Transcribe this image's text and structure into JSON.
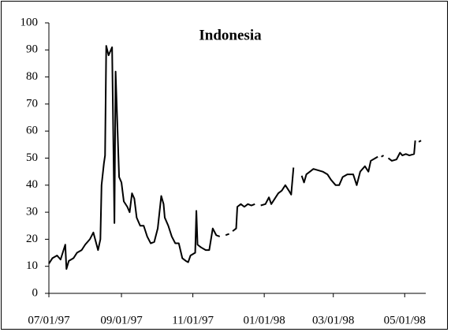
{
  "chart_data": {
    "type": "line",
    "title": "Indonesia",
    "x": [
      "07/01/97",
      "07/04/97",
      "07/08/97",
      "07/11/97",
      "07/15/97",
      "07/16/97",
      "07/18/97",
      "07/22/97",
      "07/25/97",
      "07/29/97",
      "08/01/97",
      "08/05/97",
      "08/08/97",
      "08/12/97",
      "08/14/97",
      "08/15/97",
      "08/17/97",
      "08/18/97",
      "08/19/97",
      "08/21/97",
      "08/24/97",
      "08/26/97",
      "08/27/97",
      "08/30/97",
      "09/01/97",
      "09/03/97",
      "09/06/97",
      "09/08/97",
      "09/10/97",
      "09/12/97",
      "09/14/97",
      "09/17/97",
      "09/20/97",
      "09/23/97",
      "09/26/97",
      "09/29/97",
      "10/02/97",
      "10/05/97",
      "10/07/97",
      "10/08/97",
      "10/11/97",
      "10/14/97",
      "10/17/97",
      "10/20/97",
      "10/23/97",
      "10/26/97",
      "10/28/97",
      "10/30/97",
      "11/03/97",
      "11/04/97",
      "11/05/97",
      "11/08/97",
      "11/12/97",
      "11/15/97",
      "11/18/97",
      "11/21/97",
      "11/24/97",
      "11/26/97",
      "11/29/97",
      "12/02/97",
      "12/03/97",
      "12/05/97",
      "12/08/97",
      "12/09/97",
      "12/12/97",
      "12/15/97",
      "12/18/97",
      "12/21/97",
      "12/24/97",
      "12/26/97",
      "12/29/97",
      "01/02/98",
      "01/05/98",
      "01/07/98",
      "01/10/98",
      "01/13/98",
      "01/16/98",
      "01/19/98",
      "01/22/98",
      "01/24/98",
      "01/26/98",
      "01/29/98",
      "02/02/98",
      "02/04/98",
      "02/06/98",
      "02/09/98",
      "02/12/98",
      "02/16/98",
      "02/20/98",
      "02/24/98",
      "02/27/98",
      "03/03/98",
      "03/06/98",
      "03/09/98",
      "03/13/98",
      "03/18/98",
      "03/21/98",
      "03/24/98",
      "03/28/98",
      "03/31/98",
      "04/02/98",
      "04/06/98",
      "04/08/98",
      "04/10/98",
      "04/11/98",
      "04/13/98",
      "04/15/98",
      "04/17/98",
      "04/20/98",
      "04/24/98",
      "04/27/98",
      "04/29/98",
      "05/02/98",
      "05/05/98",
      "05/09/98",
      "05/10/98",
      "05/11/98",
      "05/13/98",
      "05/15/98"
    ],
    "series": [
      {
        "color": "#000000",
        "values": [
          11,
          13,
          14,
          12.5,
          18,
          9,
          12,
          13,
          15,
          16,
          18,
          20,
          22.5,
          16,
          20,
          40,
          48,
          51,
          91.5,
          88,
          91,
          26,
          82,
          43,
          41,
          34,
          32,
          30,
          37,
          35,
          28,
          25,
          25,
          21,
          18.5,
          19,
          24,
          36,
          33,
          28,
          25,
          21,
          18.5,
          18.5,
          13,
          12,
          11.5,
          14,
          15,
          30.5,
          18,
          17,
          16,
          16,
          24,
          21.5,
          21,
          null,
          21.5,
          22,
          null,
          23,
          24,
          32,
          33,
          32,
          33,
          32.5,
          33,
          null,
          32.5,
          33,
          35.5,
          33,
          35,
          37,
          38,
          40,
          38,
          36.5,
          46.5,
          null,
          43.5,
          41,
          44,
          45,
          46,
          45.5,
          45,
          44,
          42,
          40,
          40,
          43,
          44,
          44,
          40,
          45,
          47,
          45,
          49,
          50,
          50.5,
          null,
          50.5,
          51,
          null,
          50,
          49,
          49.5,
          52,
          51,
          51.5,
          51,
          51.5,
          56.5,
          null,
          56,
          56.5
        ]
      }
    ],
    "xlim": [
      "07/01/97",
      "05/19/98"
    ],
    "xticks": [
      "07/01/97",
      "09/01/97",
      "11/01/97",
      "01/01/98",
      "03/01/98",
      "05/01/98"
    ],
    "ylim": [
      0,
      100
    ],
    "yticks": [
      0,
      10,
      20,
      30,
      40,
      50,
      60,
      70,
      80,
      90,
      100
    ]
  }
}
